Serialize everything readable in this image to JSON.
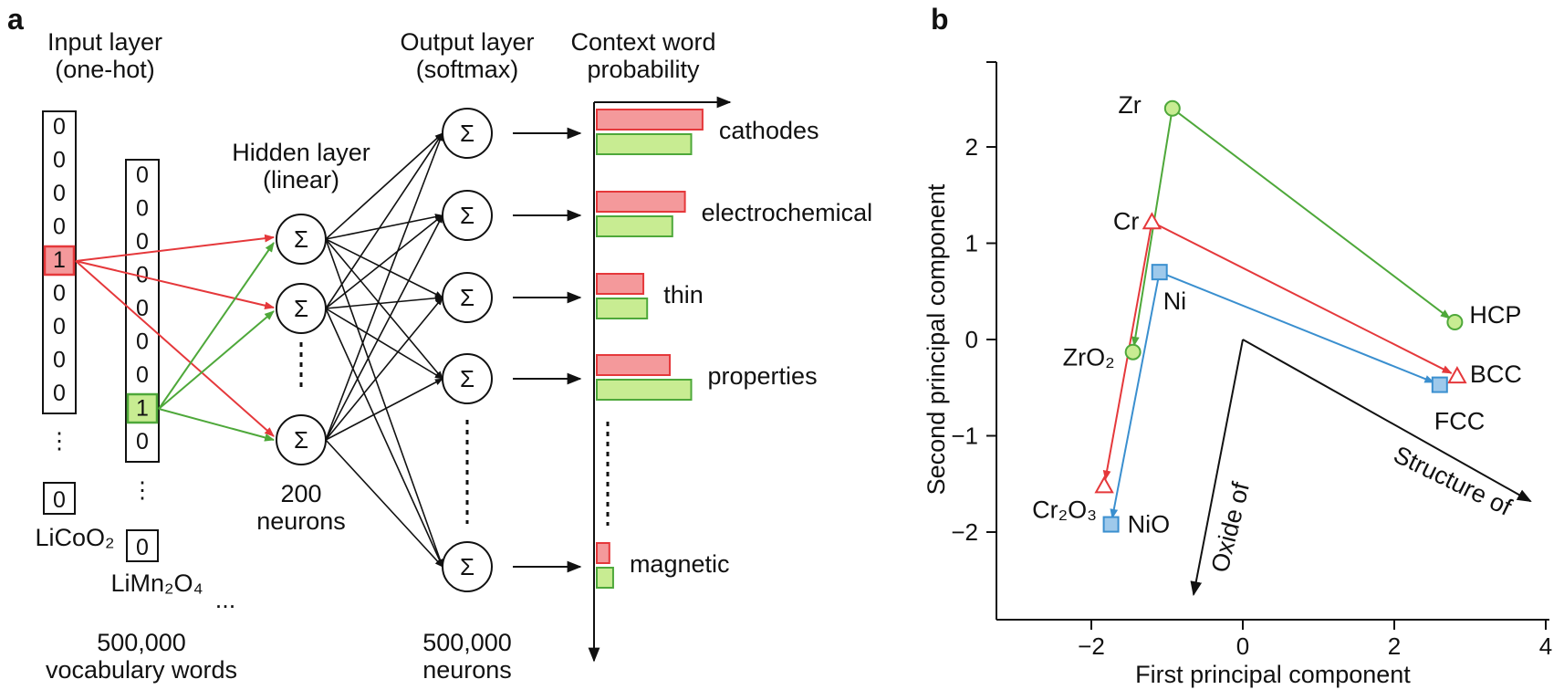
{
  "colors": {
    "red": "#e5383b",
    "red_fill": "#f4999b",
    "green": "#4ea83a",
    "green_fill": "#c8ec92",
    "blue": "#3a8fcf",
    "blue_fill": "#9ec9eb",
    "black": "#111111"
  },
  "panel_a": {
    "label": "a",
    "input_title_1": "Input layer",
    "input_title_2": "(one-hot)",
    "hidden_title_1": "Hidden layer",
    "hidden_title_2": "(linear)",
    "output_title_1": "Output layer",
    "output_title_2": "(softmax)",
    "context_title_1": "Context word",
    "context_title_2": "probability",
    "vector1": [
      "0",
      "0",
      "0",
      "0",
      "1",
      "0",
      "0",
      "0",
      "0"
    ],
    "vector1_last": "0",
    "vector1_word": "LiCoO₂",
    "vector2": [
      "0",
      "0",
      "0",
      "0",
      "0",
      "0",
      "0",
      "1",
      "0"
    ],
    "vector2_last": "0",
    "vector2_word": "LiMn₂O₄",
    "ellipsis": "...",
    "vocab_1": "500,000",
    "vocab_2": "vocabulary words",
    "sigma": "Σ",
    "hidden_1": "200",
    "hidden_2": "neurons",
    "output_1": "500,000",
    "output_2": "neurons",
    "bars": [
      {
        "word": "cathodes",
        "red": 0.84,
        "green": 0.75
      },
      {
        "word": "electrochemical",
        "red": 0.7,
        "green": 0.6
      },
      {
        "word": "thin",
        "red": 0.37,
        "green": 0.4
      },
      {
        "word": "properties",
        "red": 0.58,
        "green": 0.75
      },
      {
        "word": "magnetic",
        "red": 0.1,
        "green": 0.13
      }
    ]
  },
  "panel_b": {
    "label": "b",
    "chart_data": {
      "type": "scatter",
      "xlabel": "First principal component",
      "ylabel": "Second principal component",
      "xlim": [
        -3.3,
        4
      ],
      "ylim": [
        -2.9,
        3
      ],
      "xticks": [
        "−2",
        "0",
        "2",
        "4"
      ],
      "yticks": [
        "2",
        "1",
        "0",
        "−1",
        "−2"
      ],
      "points": [
        {
          "name": "Zr",
          "x": -0.93,
          "y": 2.4,
          "marker": "circle",
          "color": "green"
        },
        {
          "name": "ZrO₂",
          "x": -1.45,
          "y": -0.13,
          "marker": "circle",
          "color": "green"
        },
        {
          "name": "HCP",
          "x": 2.8,
          "y": 0.18,
          "marker": "circle",
          "color": "green"
        },
        {
          "name": "Cr",
          "x": -1.2,
          "y": 1.22,
          "marker": "triangle",
          "color": "red"
        },
        {
          "name": "Cr₂O₃",
          "x": -1.83,
          "y": -1.52,
          "marker": "triangle",
          "color": "red"
        },
        {
          "name": "BCC",
          "x": 2.83,
          "y": -0.38,
          "marker": "triangle",
          "color": "red"
        },
        {
          "name": "Ni",
          "x": -1.1,
          "y": 0.7,
          "marker": "square",
          "color": "blue"
        },
        {
          "name": "NiO",
          "x": -1.74,
          "y": -1.92,
          "marker": "square",
          "color": "blue"
        },
        {
          "name": "FCC",
          "x": 2.6,
          "y": -0.47,
          "marker": "square",
          "color": "blue"
        }
      ],
      "arrows": [
        {
          "from": "Zr",
          "to": "ZrO₂",
          "color": "green"
        },
        {
          "from": "Zr",
          "to": "HCP",
          "color": "green"
        },
        {
          "from": "Cr",
          "to": "Cr₂O₃",
          "color": "red"
        },
        {
          "from": "Cr",
          "to": "BCC",
          "color": "red"
        },
        {
          "from": "Ni",
          "to": "NiO",
          "color": "blue"
        },
        {
          "from": "Ni",
          "to": "FCC",
          "color": "blue"
        }
      ],
      "axis_arrows": [
        {
          "label": "Oxide of",
          "origin": [
            0,
            0
          ],
          "to": [
            -0.65,
            -2.65
          ]
        },
        {
          "label": "Structure of",
          "origin": [
            0,
            0
          ],
          "to": [
            3.8,
            -1.68
          ]
        }
      ]
    }
  }
}
